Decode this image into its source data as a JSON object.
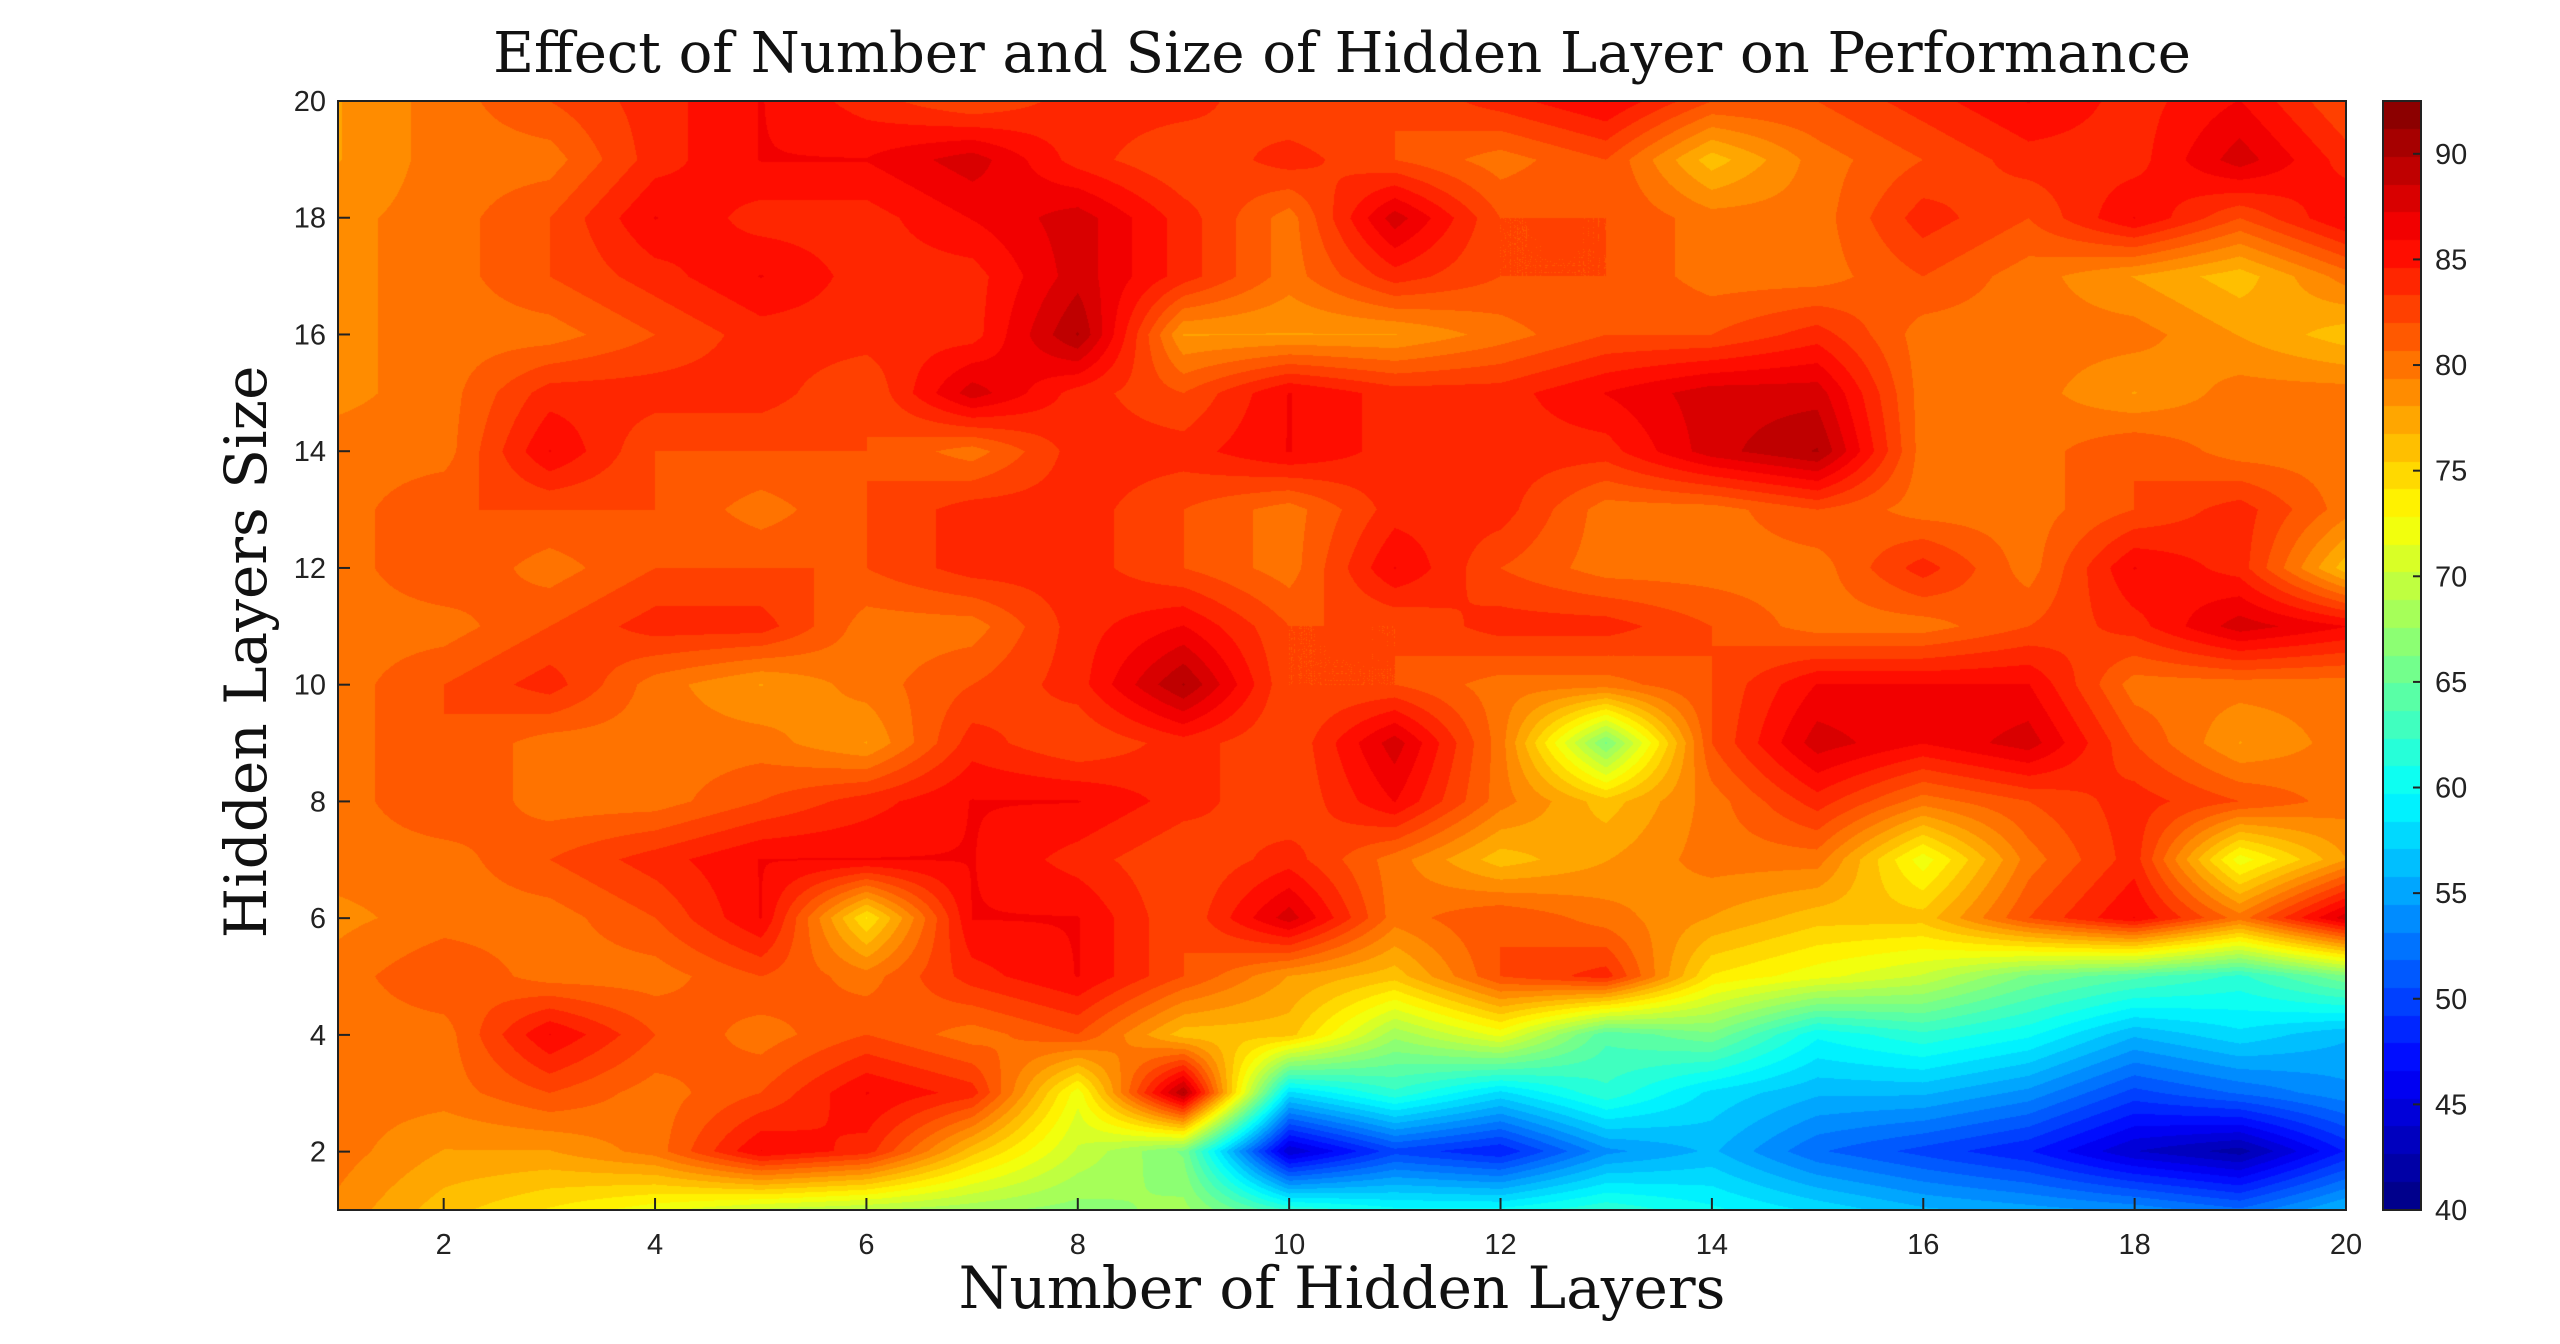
{
  "chart_data": {
    "type": "heatmap",
    "subtype": "filled-contour",
    "title": "Effect of Number and Size of Hidden Layer on Performance",
    "xlabel": "Number of Hidden Layers",
    "ylabel": "Hidden Layers Size",
    "xlim": [
      1,
      20
    ],
    "ylim": [
      1,
      20
    ],
    "x": [
      1,
      2,
      3,
      4,
      5,
      6,
      7,
      8,
      9,
      10,
      11,
      12,
      13,
      14,
      15,
      16,
      17,
      18,
      19,
      20
    ],
    "y": [
      1,
      2,
      3,
      4,
      5,
      6,
      7,
      8,
      9,
      10,
      11,
      12,
      13,
      14,
      15,
      16,
      17,
      18,
      19,
      20
    ],
    "x_ticks": [
      2,
      4,
      6,
      8,
      10,
      12,
      14,
      16,
      18,
      20
    ],
    "y_ticks": [
      2,
      4,
      6,
      8,
      10,
      12,
      14,
      16,
      18,
      20
    ],
    "colorbar": {
      "colormap": "jet",
      "range": [
        40,
        92.5
      ],
      "ticks": [
        40,
        45,
        50,
        55,
        60,
        65,
        70,
        75,
        80,
        85,
        90
      ]
    },
    "values_note_rows": "z[row][col], row index = hidden layer size y (1..20), col index = number of hidden layers x (1..20)",
    "z": [
      [
        79,
        76,
        74,
        72,
        70,
        69,
        68,
        67,
        68,
        62,
        60,
        60,
        62,
        60,
        58,
        56,
        55,
        54,
        52,
        56
      ],
      [
        80,
        78,
        78,
        80,
        86,
        84,
        76,
        70,
        66,
        44,
        50,
        48,
        54,
        56,
        52,
        50,
        48,
        44,
        42,
        48
      ],
      [
        80,
        80,
        82,
        80,
        82,
        86,
        84,
        72,
        90,
        58,
        62,
        58,
        62,
        58,
        56,
        56,
        54,
        50,
        52,
        54
      ],
      [
        80,
        80,
        86,
        82,
        80,
        82,
        80,
        82,
        76,
        76,
        68,
        72,
        64,
        66,
        60,
        62,
        60,
        56,
        58,
        56
      ],
      [
        80,
        82,
        80,
        80,
        82,
        80,
        84,
        86,
        82,
        78,
        76,
        82,
        84,
        74,
        72,
        70,
        66,
        64,
        62,
        66
      ],
      [
        79,
        80,
        80,
        82,
        86,
        74,
        86,
        86,
        82,
        88,
        80,
        82,
        80,
        78,
        76,
        76,
        82,
        86,
        80,
        88
      ],
      [
        80,
        80,
        82,
        84,
        86,
        86,
        86,
        84,
        82,
        84,
        80,
        76,
        78,
        80,
        80,
        72,
        80,
        84,
        72,
        78
      ],
      [
        80,
        82,
        80,
        80,
        82,
        84,
        86,
        86,
        84,
        82,
        86,
        80,
        76,
        80,
        84,
        80,
        82,
        84,
        82,
        80
      ],
      [
        80,
        82,
        80,
        80,
        80,
        78,
        84,
        82,
        84,
        82,
        88,
        80,
        66,
        82,
        88,
        86,
        88,
        82,
        78,
        80
      ],
      [
        80,
        82,
        84,
        80,
        78,
        80,
        82,
        84,
        90,
        82,
        82,
        80,
        80,
        82,
        86,
        86,
        86,
        80,
        80,
        80
      ],
      [
        80,
        80,
        82,
        84,
        84,
        80,
        80,
        84,
        86,
        82,
        82,
        84,
        84,
        82,
        80,
        80,
        82,
        84,
        88,
        86
      ],
      [
        80,
        82,
        80,
        82,
        82,
        82,
        84,
        84,
        82,
        80,
        86,
        82,
        80,
        80,
        80,
        84,
        80,
        86,
        84,
        76
      ],
      [
        80,
        82,
        82,
        82,
        80,
        82,
        84,
        84,
        82,
        80,
        84,
        84,
        80,
        80,
        82,
        80,
        80,
        82,
        84,
        80
      ],
      [
        80,
        80,
        86,
        82,
        82,
        82,
        80,
        84,
        84,
        86,
        84,
        84,
        84,
        88,
        90,
        80,
        80,
        82,
        80,
        80
      ],
      [
        79,
        80,
        84,
        84,
        84,
        82,
        88,
        84,
        82,
        86,
        84,
        84,
        86,
        88,
        88,
        80,
        80,
        78,
        80,
        80
      ],
      [
        79,
        80,
        80,
        82,
        84,
        84,
        84,
        90,
        78,
        78,
        78,
        80,
        82,
        82,
        84,
        80,
        80,
        80,
        78,
        76
      ],
      [
        79,
        80,
        82,
        84,
        86,
        84,
        84,
        88,
        84,
        80,
        84,
        82,
        82,
        80,
        80,
        82,
        80,
        78,
        76,
        80
      ],
      [
        79,
        80,
        82,
        86,
        84,
        84,
        86,
        88,
        84,
        80,
        88,
        82,
        82,
        80,
        80,
        84,
        82,
        86,
        82,
        86
      ],
      [
        78,
        80,
        80,
        84,
        86,
        86,
        88,
        84,
        82,
        84,
        82,
        80,
        82,
        76,
        80,
        82,
        84,
        84,
        88,
        84
      ],
      [
        78,
        80,
        82,
        84,
        86,
        84,
        82,
        84,
        84,
        82,
        82,
        84,
        86,
        82,
        82,
        84,
        86,
        84,
        86,
        82
      ]
    ]
  }
}
